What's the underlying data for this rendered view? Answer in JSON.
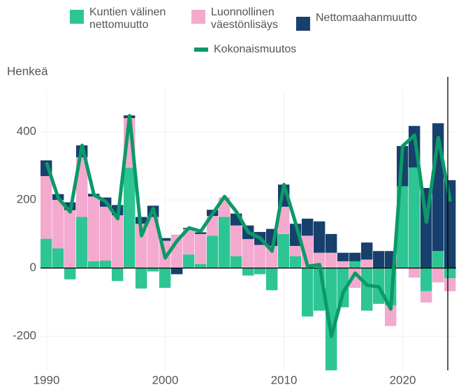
{
  "chart_data": {
    "type": "stacked_bar_line",
    "y_axis_label": "Henkeä",
    "x": [
      1990,
      1991,
      1992,
      1993,
      1994,
      1995,
      1996,
      1997,
      1998,
      1999,
      2000,
      2001,
      2002,
      2003,
      2004,
      2005,
      2006,
      2007,
      2008,
      2009,
      2010,
      2011,
      2012,
      2013,
      2014,
      2015,
      2016,
      2017,
      2018,
      2019,
      2020,
      2021,
      2022,
      2023,
      2024
    ],
    "series": [
      {
        "name": "Kuntien välinen\nnettomuutto",
        "kind": "bar",
        "color": "#2ec594",
        "values": [
          86,
          58,
          -33,
          150,
          20,
          22,
          -38,
          295,
          -60,
          -10,
          -58,
          0,
          40,
          12,
          95,
          150,
          35,
          -22,
          -18,
          -65,
          100,
          35,
          -142,
          -125,
          -310,
          -115,
          20,
          -125,
          -105,
          -110,
          240,
          295,
          -68,
          50,
          -30
        ]
      },
      {
        "name": "Luonnollinen\nväestönlisäys",
        "kind": "bar",
        "color": "#f4a9cf",
        "values": [
          184,
          142,
          170,
          175,
          190,
          158,
          155,
          145,
          130,
          150,
          80,
          98,
          75,
          88,
          58,
          58,
          90,
          85,
          68,
          65,
          80,
          30,
          95,
          45,
          45,
          20,
          -58,
          25,
          0,
          -60,
          0,
          -28,
          -33,
          -42,
          -38
        ]
      },
      {
        "name": "Nettomaahanmuutto",
        "kind": "bar",
        "color": "#17406d",
        "values": [
          46,
          17,
          23,
          35,
          8,
          27,
          30,
          8,
          20,
          33,
          8,
          -18,
          3,
          5,
          18,
          0,
          35,
          40,
          38,
          50,
          65,
          65,
          50,
          92,
          55,
          25,
          25,
          50,
          50,
          50,
          118,
          122,
          235,
          375,
          258
        ]
      },
      {
        "name": "Kokonaismuutos",
        "kind": "line",
        "color": "#0a9a68",
        "values": [
          310,
          205,
          165,
          360,
          215,
          195,
          145,
          447,
          95,
          175,
          30,
          80,
          118,
          108,
          160,
          210,
          165,
          105,
          88,
          50,
          245,
          130,
          5,
          10,
          -200,
          -70,
          -15,
          -50,
          -55,
          -120,
          358,
          390,
          135,
          383,
          195
        ]
      }
    ],
    "xlim": [
      1989.5,
      2024.5
    ],
    "xticks": [
      1990,
      2000,
      2010,
      2020
    ],
    "ylim": [
      -300,
      520
    ],
    "yticks": [
      -200,
      0,
      200,
      400
    ],
    "marker_x": 2023.8,
    "grid": true
  }
}
